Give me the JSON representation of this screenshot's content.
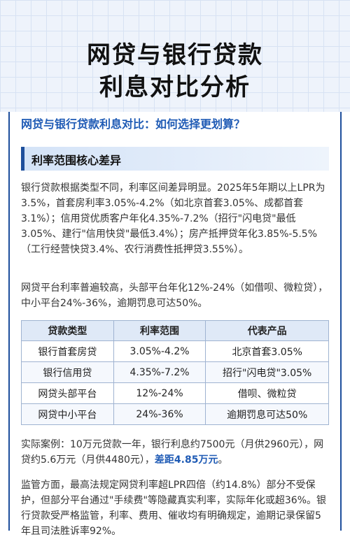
{
  "title_line1": "网贷与银行贷款",
  "title_line2": "利息对比分析",
  "subtitle": "网贷与银行贷款利息对比：如何选择更划算？",
  "section": {
    "heading": "利率范围核心差异"
  },
  "paragraph1": "银行贷款根据类型不同，利率区间差异明显。2025年5年期以上LPR为3.5%，首套房利率3.05%-4.2%（如北京首套3.05%、成都首套3.1%）；信用贷优质客户年化4.35%-7.2%（招行\"闪电贷\"最低3.05%、建行\"信用快贷\"最低3.4%）；房产抵押贷年化3.85%-5.5%（工行经营快贷3.4%、农行消费性抵押贷3.55%）。",
  "paragraph2": "网贷平台利率普遍较高，头部平台年化12%-24%（如借呗、微粒贷），中小平台24%-36%，逾期罚息可达50%。",
  "table": {
    "headers": [
      "贷款类型",
      "利率范围",
      "代表产品"
    ],
    "rows": [
      [
        "银行首套房贷",
        "3.05%-4.2%",
        "北京首套3.05%"
      ],
      [
        "银行信用贷",
        "4.35%-7.2%",
        "招行\"闪电贷\"3.05%"
      ],
      [
        "网贷头部平台",
        "12%-24%",
        "借呗、微粒贷"
      ],
      [
        "网贷中小平台",
        "24%-36%",
        "逾期罚息可达50%"
      ]
    ]
  },
  "paragraph3": {
    "text": "实际案例：10万元贷款一年，银行利息约7500元（月供2960元），网贷约5.6万元（月供4480元），",
    "highlight": "差距4.85万元",
    "end": "。"
  },
  "paragraph4": "监管方面，最高法规定网贷利率超LPR四倍（约14.8%）部分不受保护，但部分平台通过\"手续费\"等隐藏真实利率，实际年化或超36%。银行贷款受严格监管，利率、费用、催收均有明确规定，逾期记录保留5年且司法胜诉率92%。",
  "colors": {
    "accent": "#1f5bb5",
    "border": "#1e4f9c"
  }
}
